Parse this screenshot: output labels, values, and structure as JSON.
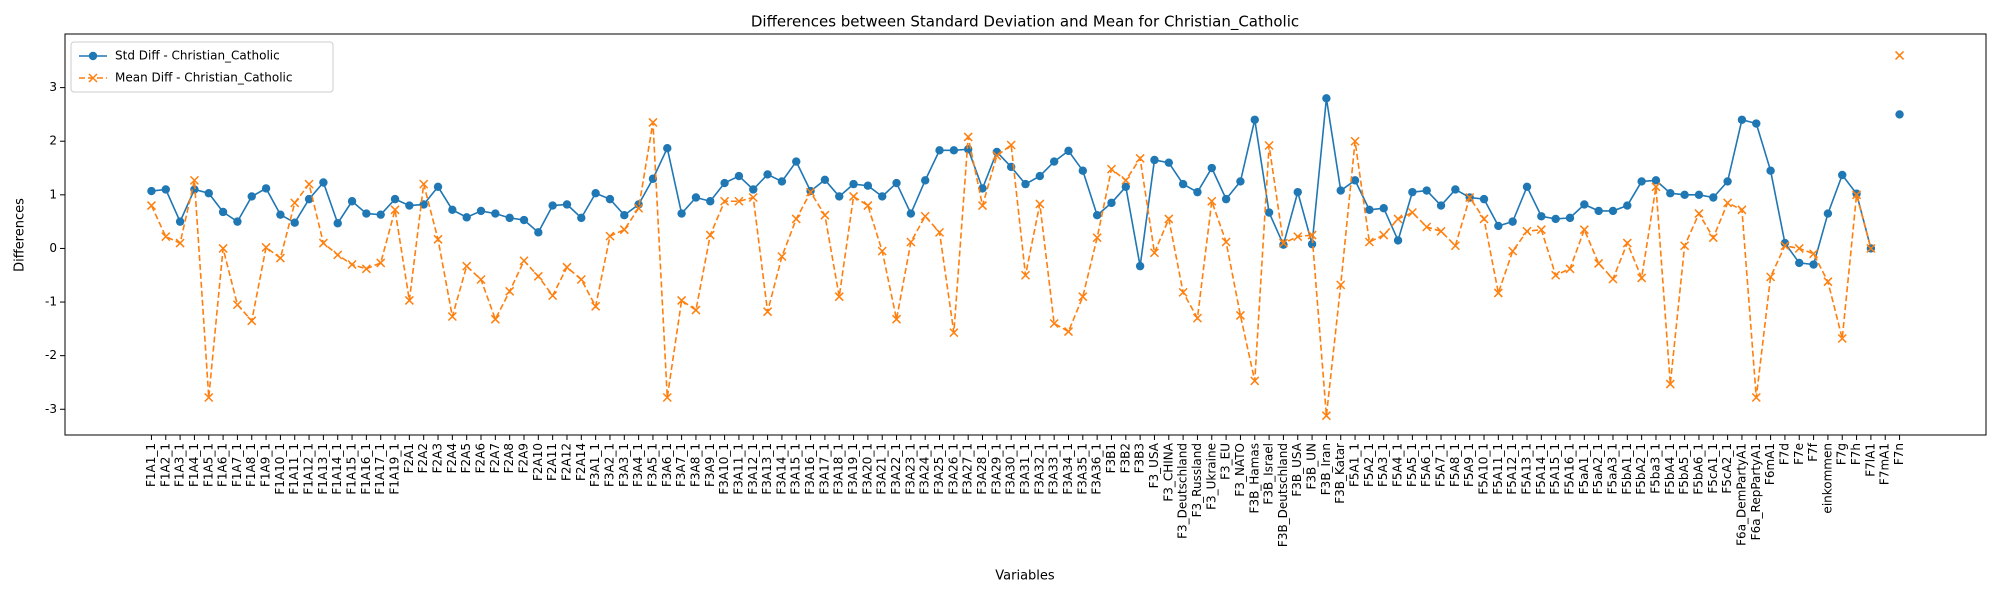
{
  "chart_data": {
    "type": "line",
    "title": "Differences between Standard Deviation and Mean for Christian_Catholic",
    "x_label": "Variables",
    "y_label": "Differences",
    "categories": [
      "F1A1_1",
      "F1A2_1",
      "F1A3_1",
      "F1A4_1",
      "F1A5_1",
      "F1A6_1",
      "F1A7_1",
      "F1A8_1",
      "F1A9_1",
      "F1A10_1",
      "F1A11_1",
      "F1A12_1",
      "F1A13_1",
      "F1A14_1",
      "F1A15_1",
      "F1A16_1",
      "F1A17_1",
      "F1A19_1",
      "F2A1",
      "F2A2",
      "F2A3",
      "F2A4",
      "F2A5",
      "F2A6",
      "F2A7",
      "F2A8",
      "F2A9",
      "F2A10",
      "F2A11",
      "F2A12",
      "F2A14",
      "F3A1_1",
      "F3A2_1",
      "F3A3_1",
      "F3A4_1",
      "F3A5_1",
      "F3A6_1",
      "F3A7_1",
      "F3A8_1",
      "F3A9_1",
      "F3A10_1",
      "F3A11_1",
      "F3A12_1",
      "F3A13_1",
      "F3A14_1",
      "F3A15_1",
      "F3A16_1",
      "F3A17_1",
      "F3A18_1",
      "F3A19_1",
      "F3A20_1",
      "F3A21_1",
      "F3A22_1",
      "F3A23_1",
      "F3A24_1",
      "F3A25_1",
      "F3A26_1",
      "F3A27_1",
      "F3A28_1",
      "F3A29_1",
      "F3A30_1",
      "F3A31_1",
      "F3A32_1",
      "F3A33_1",
      "F3A34_1",
      "F3A35_1",
      "F3A36_1",
      "F3B1",
      "F3B2",
      "F3B3",
      "F3_USA",
      "F3_CHINA",
      "F3_Deutschland",
      "F3_Russland",
      "F3_Ukraine",
      "F3_EU",
      "F3_NATO",
      "F3B_Hamas",
      "F3B_Israel",
      "F3B_Deutschland",
      "F3B_USA",
      "F3B_UN",
      "F3B_Iran",
      "F3B_Katar",
      "F5A1_1",
      "F5A2_1",
      "F5A3_1",
      "F5A4_1",
      "F5A5_1",
      "F5A6_1",
      "F5A7_1",
      "F5A8_1",
      "F5A9_1",
      "F5A10_1",
      "F5A11_1",
      "F5A12_1",
      "F5A13_1",
      "F5A14_1",
      "F5A15_1",
      "F5A16_1",
      "F5aA1_1",
      "F5aA2_1",
      "F5aA3_1",
      "F5bA1_1",
      "F5bA2_1",
      "F5ba3_1",
      "F5bA4_1",
      "F5bA5_1",
      "F5bA6_1",
      "F5cA1_1",
      "F5cA2_1",
      "F6a_DemPartyA1",
      "F6a_RepPartyA1",
      "F6mA1",
      "F7d",
      "F7e",
      "F7f",
      "einkommen",
      "F7g",
      "F7h",
      "F7lA1",
      "F7mA1",
      "F7n"
    ],
    "series": [
      {
        "name": "Std Diff - Christian_Catholic",
        "color": "#1f77b4",
        "linestyle": "solid",
        "marker": "circle",
        "values": [
          1.07,
          1.1,
          0.5,
          1.1,
          1.03,
          0.68,
          0.5,
          0.97,
          1.12,
          0.63,
          0.48,
          0.92,
          1.23,
          0.47,
          0.88,
          0.65,
          0.63,
          0.92,
          0.8,
          0.82,
          1.15,
          0.72,
          0.58,
          0.7,
          0.65,
          0.57,
          0.53,
          0.3,
          0.8,
          0.82,
          0.57,
          1.03,
          0.92,
          0.62,
          0.82,
          1.3,
          1.87,
          0.65,
          0.95,
          0.88,
          1.22,
          1.35,
          1.1,
          1.38,
          1.25,
          1.62,
          1.07,
          1.28,
          0.97,
          1.2,
          1.17,
          0.97,
          1.22,
          0.65,
          1.27,
          1.83,
          1.83,
          1.85,
          1.12,
          1.8,
          1.52,
          1.2,
          1.35,
          1.62,
          1.82,
          1.45,
          0.62,
          0.85,
          1.15,
          -0.33,
          1.65,
          1.6,
          1.2,
          1.05,
          1.5,
          0.92,
          1.25,
          2.4,
          0.67,
          0.07,
          1.05,
          0.08,
          2.8,
          1.08,
          1.27,
          0.72,
          0.75,
          0.15,
          1.05,
          1.08,
          0.8,
          1.1,
          0.95,
          0.92,
          0.42,
          0.5,
          1.15,
          0.6,
          0.55,
          0.57,
          0.82,
          0.7,
          0.7,
          0.8,
          1.25,
          1.27,
          1.03,
          1.0,
          1.0,
          0.95,
          1.25,
          2.4,
          2.33,
          1.45,
          0.1,
          -0.27,
          -0.3,
          0.65,
          1.37,
          1.02,
          0.0,
          null,
          2.5
        ]
      },
      {
        "name": "Mean Diff - Christian_Catholic",
        "color": "#ff7f0e",
        "linestyle": "dashed",
        "marker": "x",
        "values": [
          0.8,
          0.22,
          0.1,
          1.27,
          -2.78,
          0.0,
          -1.05,
          -1.35,
          0.02,
          -0.18,
          0.85,
          1.2,
          0.1,
          -0.12,
          -0.3,
          -0.38,
          -0.27,
          0.72,
          -0.97,
          1.2,
          0.17,
          -1.27,
          -0.33,
          -0.58,
          -1.32,
          -0.8,
          -0.23,
          -0.52,
          -0.88,
          -0.35,
          -0.58,
          -1.08,
          0.23,
          0.35,
          0.75,
          2.35,
          -2.78,
          -0.97,
          -1.15,
          0.25,
          0.88,
          0.88,
          0.95,
          -1.18,
          -0.15,
          0.55,
          1.05,
          0.62,
          -0.9,
          0.97,
          0.8,
          -0.05,
          -1.32,
          0.12,
          0.6,
          0.3,
          -1.57,
          2.08,
          0.8,
          1.73,
          1.93,
          -0.5,
          0.83,
          -1.4,
          -1.55,
          -0.9,
          0.2,
          1.48,
          1.27,
          1.68,
          -0.08,
          0.55,
          -0.82,
          -1.3,
          0.88,
          0.12,
          -1.25,
          -2.47,
          1.92,
          0.1,
          0.22,
          0.25,
          -3.12,
          -0.68,
          2.0,
          0.12,
          0.25,
          0.55,
          0.67,
          0.4,
          0.32,
          0.05,
          0.95,
          0.55,
          -0.83,
          -0.05,
          0.32,
          0.35,
          -0.5,
          -0.38,
          0.35,
          -0.28,
          -0.57,
          0.1,
          -0.55,
          1.15,
          -2.53,
          0.05,
          0.65,
          0.2,
          0.85,
          0.72,
          -2.78,
          -0.53,
          0.05,
          0.0,
          -0.1,
          -0.62,
          -1.68,
          1.0,
          0.0,
          null,
          3.6
        ]
      }
    ],
    "ylim": [
      -3.48,
      4.0
    ],
    "yticks": [
      -3,
      -2,
      -1,
      0,
      1,
      2,
      3
    ],
    "grid": false,
    "legend": "upper left"
  }
}
